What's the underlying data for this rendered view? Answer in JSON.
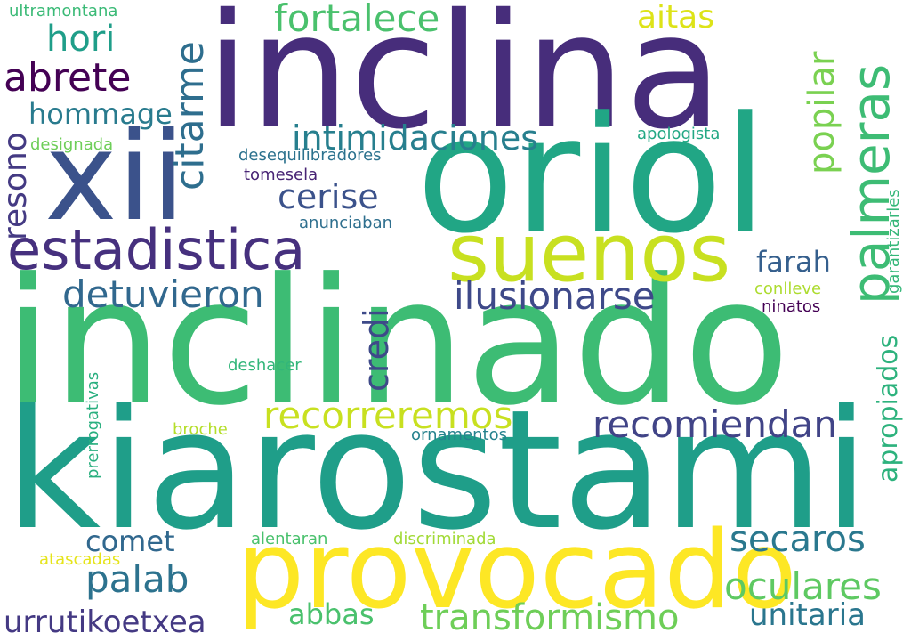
{
  "words": [
    {
      "text": "inclina",
      "color": "#472d7b"
    },
    {
      "text": "inclinado",
      "color": "#3dbc74"
    },
    {
      "text": "kiarostami",
      "color": "#1f9e89"
    },
    {
      "text": "oriol",
      "color": "#21a685"
    },
    {
      "text": "xii",
      "color": "#3b528b"
    },
    {
      "text": "provocado",
      "color": "#fde725"
    },
    {
      "text": "suenos",
      "color": "#c8e020"
    },
    {
      "text": "estadistica",
      "color": "#46307e"
    },
    {
      "text": "palmeras",
      "color": "#3dbc74"
    },
    {
      "text": "citarme",
      "color": "#2e6e8e"
    },
    {
      "text": "fortalece",
      "color": "#4ac16d"
    },
    {
      "text": "abrete",
      "color": "#440154"
    },
    {
      "text": "hori",
      "color": "#1f9e89"
    },
    {
      "text": "hommage",
      "color": "#297b8e"
    },
    {
      "text": "aitas",
      "color": "#dde318"
    },
    {
      "text": "popilar",
      "color": "#7ad151"
    },
    {
      "text": "resono",
      "color": "#443a83"
    },
    {
      "text": "intimidaciones",
      "color": "#277f8e"
    },
    {
      "text": "cerise",
      "color": "#3b528b"
    },
    {
      "text": "detuvieron",
      "color": "#31688e"
    },
    {
      "text": "ilusionarse",
      "color": "#3e4989"
    },
    {
      "text": "farah",
      "color": "#355f8d"
    },
    {
      "text": "recorreremos",
      "color": "#c8e020"
    },
    {
      "text": "recomiendan",
      "color": "#414487"
    },
    {
      "text": "apropiados",
      "color": "#2db27d"
    },
    {
      "text": "credi",
      "color": "#3e4a89"
    },
    {
      "text": "secaros",
      "color": "#2a788e"
    },
    {
      "text": "comet",
      "color": "#31688e"
    },
    {
      "text": "palab",
      "color": "#2c728e"
    },
    {
      "text": "oculares",
      "color": "#5ec962"
    },
    {
      "text": "transformismo",
      "color": "#6ece58"
    },
    {
      "text": "unitaria",
      "color": "#2a768e"
    },
    {
      "text": "urrutikoetxea",
      "color": "#443983"
    },
    {
      "text": "abbas",
      "color": "#4ac16d"
    },
    {
      "text": "ultramontana",
      "color": "#3aba76"
    },
    {
      "text": "designada",
      "color": "#6ece58"
    },
    {
      "text": "desequilibradores",
      "color": "#2c728e"
    },
    {
      "text": "tomesela",
      "color": "#482475"
    },
    {
      "text": "anunciaban",
      "color": "#2e6f8e"
    },
    {
      "text": "apologista",
      "color": "#22a884"
    },
    {
      "text": "garantizarles",
      "color": "#35b779"
    },
    {
      "text": "conlleve",
      "color": "#addc30"
    },
    {
      "text": "ninatos",
      "color": "#440154"
    },
    {
      "text": "deshacer",
      "color": "#32b67a"
    },
    {
      "text": "prerrogativas",
      "color": "#29af7f"
    },
    {
      "text": "broche",
      "color": "#b5de2b"
    },
    {
      "text": "ornamentos",
      "color": "#26828e"
    },
    {
      "text": "alentaran",
      "color": "#4ac16d"
    },
    {
      "text": "discriminada",
      "color": "#a2da37"
    },
    {
      "text": "atascadas",
      "color": "#e5e419"
    }
  ]
}
